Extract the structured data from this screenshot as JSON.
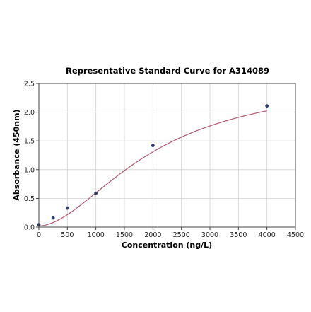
{
  "chart_data": {
    "type": "scatter",
    "title": "Representative Standard Curve for A314089",
    "xlabel": "Concentration (ng/L)",
    "ylabel": "Absorbance (450nm)",
    "xlim": [
      0,
      4500
    ],
    "ylim": [
      0,
      2.5
    ],
    "x_ticks": [
      "0",
      "500",
      "1000",
      "1500",
      "2000",
      "2500",
      "3000",
      "3500",
      "4000",
      "4500"
    ],
    "y_ticks": [
      "0.0",
      "0.5",
      "1.0",
      "1.5",
      "2.0",
      "2.5"
    ],
    "grid": true,
    "points": [
      {
        "x": 0,
        "y": 0.04
      },
      {
        "x": 250,
        "y": 0.16
      },
      {
        "x": 500,
        "y": 0.33
      },
      {
        "x": 1000,
        "y": 0.59
      },
      {
        "x": 2000,
        "y": 1.42
      },
      {
        "x": 4000,
        "y": 2.11
      }
    ],
    "fit_curve": {
      "model": "4PL",
      "A": 0.02,
      "B": 1.8,
      "C": 2000,
      "D": 2.6
    },
    "colors": {
      "points": "#2f3d6e",
      "curve": "#b0566a",
      "grid": "#d0d0d0"
    }
  }
}
